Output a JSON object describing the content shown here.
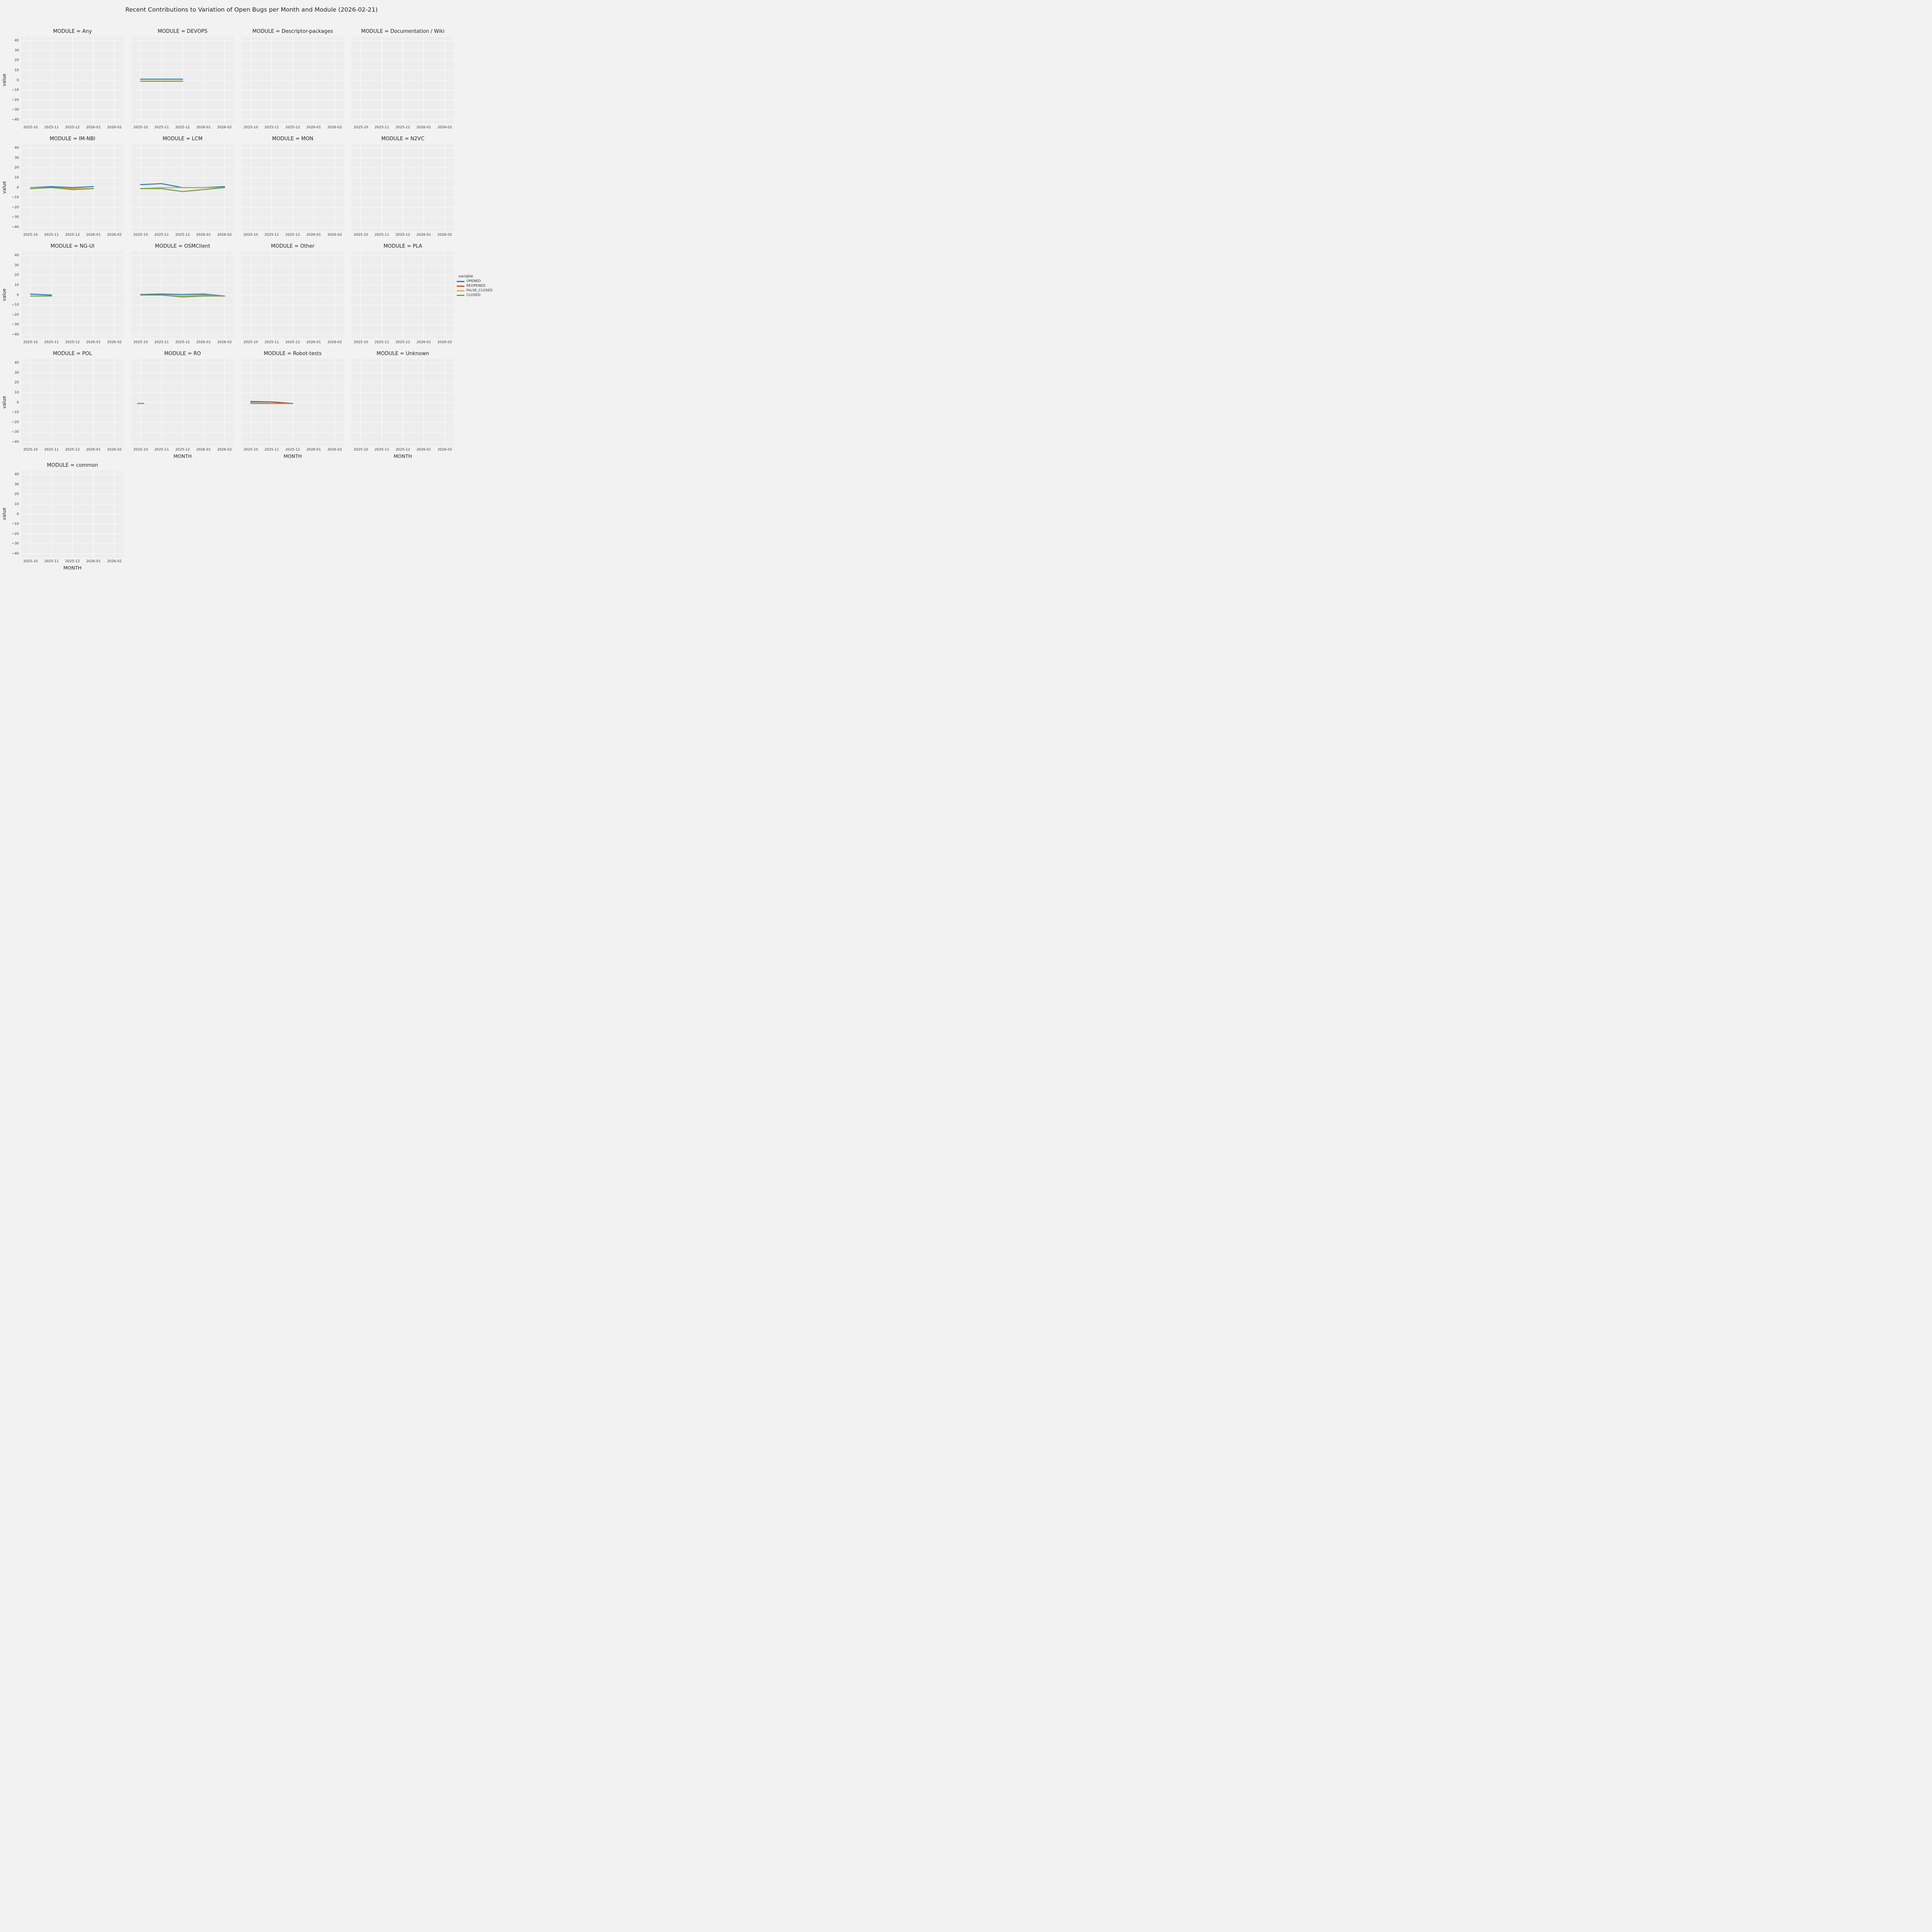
{
  "chart_data": {
    "type": "line",
    "title": "Recent Contributions to Variation of Open Bugs per Month and Module (2026-02-21)",
    "xlabel": "MONTH",
    "ylabel": "value",
    "x": [
      "2025-10",
      "2025-11",
      "2025-12",
      "2026-01",
      "2026-02"
    ],
    "ylim": [
      -40,
      40
    ],
    "y_ticks": [
      -40,
      -30,
      -20,
      -10,
      0,
      10,
      20,
      30,
      40
    ],
    "grid": true,
    "legend": {
      "title": "variable",
      "position": "right",
      "entries": [
        {
          "label": "OPENED",
          "color": "#1f77b4"
        },
        {
          "label": "REOPENED",
          "color": "#d6432c"
        },
        {
          "label": "FALSE_CLOSED",
          "color": "#e2a33c"
        },
        {
          "label": "CLOSED",
          "color": "#6d9b3d"
        }
      ]
    },
    "facets": [
      {
        "title": "MODULE = Any",
        "series": []
      },
      {
        "title": "MODULE = DEVOPS",
        "series": [
          {
            "name": "OPENED",
            "x_idx": [
              0,
              1,
              2
            ],
            "y": [
              1,
              1,
              1
            ]
          },
          {
            "name": "FALSE_CLOSED",
            "x_idx": [
              0,
              1,
              2
            ],
            "y": [
              -1,
              -1,
              -1
            ]
          },
          {
            "name": "CLOSED",
            "x_idx": [
              0,
              1,
              2
            ],
            "y": [
              -1,
              -1,
              -1
            ]
          }
        ]
      },
      {
        "title": "MODULE = Descriptor-packages",
        "series": []
      },
      {
        "title": "MODULE = Documentation / Wiki",
        "series": []
      },
      {
        "title": "MODULE = IM-NBI",
        "series": [
          {
            "name": "OPENED",
            "x_idx": [
              0,
              1,
              2,
              3
            ],
            "y": [
              0,
              1,
              0,
              1
            ]
          },
          {
            "name": "FALSE_CLOSED",
            "x_idx": [
              0,
              1,
              2,
              3
            ],
            "y": [
              0,
              0,
              -1,
              -1
            ]
          },
          {
            "name": "CLOSED",
            "x_idx": [
              0,
              1,
              2,
              3
            ],
            "y": [
              -1,
              0,
              -2,
              -1
            ]
          }
        ]
      },
      {
        "title": "MODULE = LCM",
        "series": [
          {
            "name": "OPENED",
            "x_idx": [
              0,
              1,
              2,
              3,
              4
            ],
            "y": [
              3,
              4,
              0,
              0,
              1
            ]
          },
          {
            "name": "FALSE_CLOSED",
            "x_idx": [
              0,
              1,
              2,
              3,
              4
            ],
            "y": [
              -1,
              0,
              0,
              0,
              0
            ]
          },
          {
            "name": "CLOSED",
            "x_idx": [
              0,
              1,
              2,
              3,
              4
            ],
            "y": [
              -1,
              -1,
              -4,
              -2,
              0
            ]
          }
        ]
      },
      {
        "title": "MODULE = MON",
        "series": []
      },
      {
        "title": "MODULE = N2VC",
        "series": []
      },
      {
        "title": "MODULE = NG-UI",
        "series": [
          {
            "name": "OPENED",
            "x_idx": [
              0,
              1
            ],
            "y": [
              1,
              0
            ]
          },
          {
            "name": "FALSE_CLOSED",
            "x_idx": [
              0,
              1
            ],
            "y": [
              -1,
              -1
            ]
          },
          {
            "name": "CLOSED",
            "x_idx": [
              0,
              1
            ],
            "y": [
              -1,
              -1
            ]
          }
        ]
      },
      {
        "title": "MODULE = OSMClient",
        "series": [
          {
            "name": "OPENED",
            "x_idx": [
              0,
              1,
              2,
              3,
              4
            ],
            "y": [
              0.5,
              1,
              0.5,
              1,
              -1
            ]
          },
          {
            "name": "FALSE_CLOSED",
            "x_idx": [
              0,
              1,
              2,
              3,
              4
            ],
            "y": [
              0,
              0,
              -1,
              0,
              -1
            ]
          },
          {
            "name": "CLOSED",
            "x_idx": [
              0,
              1,
              2,
              3,
              4
            ],
            "y": [
              0,
              0,
              -2,
              -1,
              -1
            ]
          }
        ]
      },
      {
        "title": "MODULE = Other",
        "series": []
      },
      {
        "title": "MODULE = PLA",
        "series": []
      },
      {
        "title": "MODULE = POL",
        "series": []
      },
      {
        "title": "MODULE = RO",
        "series": [
          {
            "name": "FALSE_CLOSED",
            "x_idx": [
              0
            ],
            "y": [
              -1
            ]
          },
          {
            "name": "CLOSED",
            "x_idx": [
              0
            ],
            "y": [
              -1
            ]
          }
        ]
      },
      {
        "title": "MODULE = Robot-tests",
        "series": [
          {
            "name": "OPENED",
            "x_idx": [
              0,
              1,
              2
            ],
            "y": [
              0.5,
              0.5,
              -1
            ]
          },
          {
            "name": "REOPENED",
            "x_idx": [
              0,
              1,
              2
            ],
            "y": [
              1,
              0.5,
              -1
            ]
          },
          {
            "name": "FALSE_CLOSED",
            "x_idx": [
              0,
              1,
              2
            ],
            "y": [
              -1,
              -1,
              -1
            ]
          },
          {
            "name": "CLOSED",
            "x_idx": [
              0,
              1,
              2
            ],
            "y": [
              -1,
              -1,
              -1
            ]
          }
        ]
      },
      {
        "title": "MODULE = Unknown",
        "series": []
      },
      {
        "title": "MODULE = common",
        "series": []
      }
    ]
  }
}
